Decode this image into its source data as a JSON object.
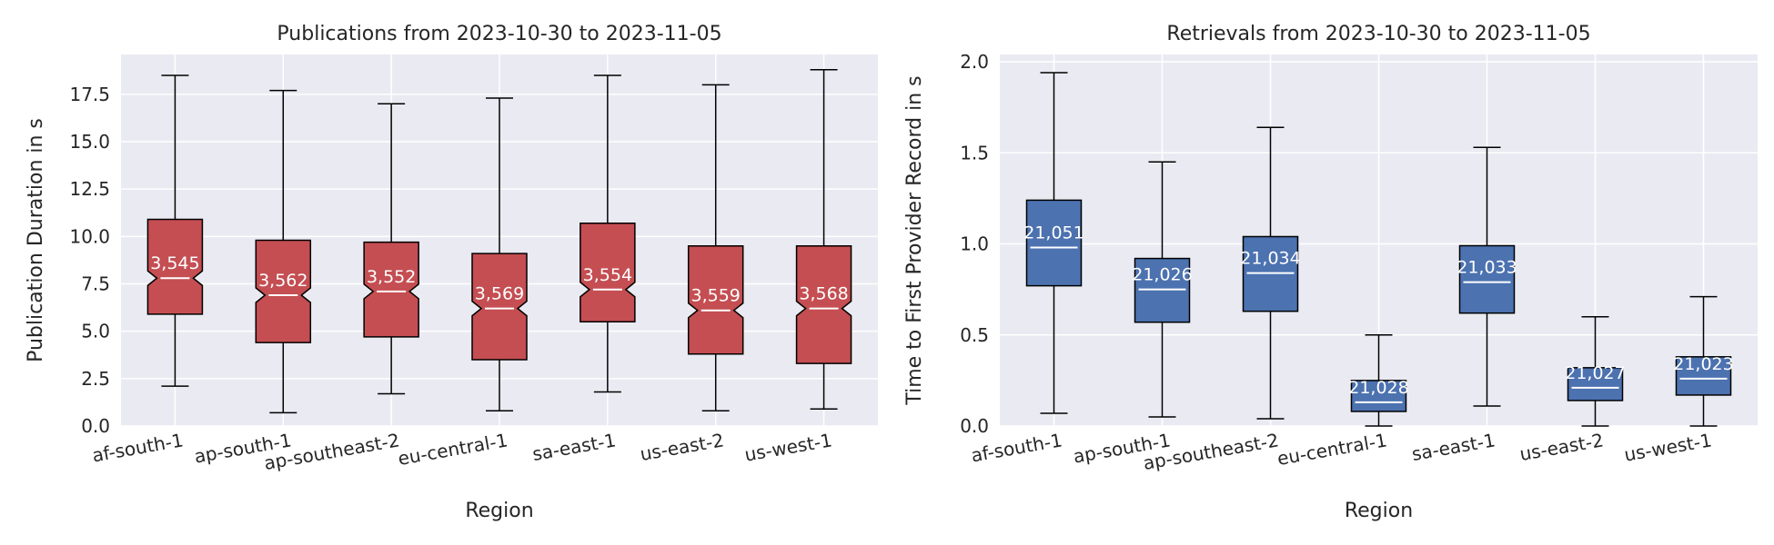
{
  "chart_data": [
    {
      "type": "boxplot",
      "title": "Publications from 2023-10-30 to 2023-11-05",
      "xlabel": "Region",
      "ylabel": "Publication Duration in s",
      "ylim": [
        0,
        19.6
      ],
      "yticks": [
        "0.0",
        "2.5",
        "5.0",
        "7.5",
        "10.0",
        "12.5",
        "15.0",
        "17.5"
      ],
      "ytick_values": [
        0,
        2.5,
        5,
        7.5,
        10,
        12.5,
        15,
        17.5
      ],
      "categories": [
        "af-south-1",
        "ap-south-1",
        "ap-southeast-2",
        "eu-central-1",
        "sa-east-1",
        "us-east-2",
        "us-west-1"
      ],
      "notched": true,
      "grid": true,
      "color": "#c44e52",
      "boxes": [
        {
          "whislo": 2.1,
          "q1": 5.9,
          "med": 7.8,
          "q3": 10.9,
          "whishi": 18.5,
          "count": "3,545"
        },
        {
          "whislo": 0.7,
          "q1": 4.4,
          "med": 6.9,
          "q3": 9.8,
          "whishi": 17.7,
          "count": "3,562"
        },
        {
          "whislo": 1.7,
          "q1": 4.7,
          "med": 7.1,
          "q3": 9.7,
          "whishi": 17.0,
          "count": "3,552"
        },
        {
          "whislo": 0.8,
          "q1": 3.5,
          "med": 6.2,
          "q3": 9.1,
          "whishi": 17.3,
          "count": "3,569"
        },
        {
          "whislo": 1.8,
          "q1": 5.5,
          "med": 7.2,
          "q3": 10.7,
          "whishi": 18.5,
          "count": "3,554"
        },
        {
          "whislo": 0.8,
          "q1": 3.8,
          "med": 6.1,
          "q3": 9.5,
          "whishi": 18.0,
          "count": "3,559"
        },
        {
          "whislo": 0.9,
          "q1": 3.3,
          "med": 6.2,
          "q3": 9.5,
          "whishi": 18.8,
          "count": "3,568"
        }
      ]
    },
    {
      "type": "boxplot",
      "title": "Retrievals from 2023-10-30 to 2023-11-05",
      "xlabel": "Region",
      "ylabel": "Time to First Provider Record in s",
      "ylim": [
        0,
        2.04
      ],
      "yticks": [
        "0.0",
        "0.5",
        "1.0",
        "1.5",
        "2.0"
      ],
      "ytick_values": [
        0,
        0.5,
        1.0,
        1.5,
        2.0
      ],
      "categories": [
        "af-south-1",
        "ap-south-1",
        "ap-southeast-2",
        "eu-central-1",
        "sa-east-1",
        "us-east-2",
        "us-west-1"
      ],
      "notched": false,
      "grid": true,
      "color": "#4c72b0",
      "boxes": [
        {
          "whislo": 0.07,
          "q1": 0.77,
          "med": 0.98,
          "q3": 1.24,
          "whishi": 1.94,
          "count": "21,051"
        },
        {
          "whislo": 0.05,
          "q1": 0.57,
          "med": 0.75,
          "q3": 0.92,
          "whishi": 1.45,
          "count": "21,026"
        },
        {
          "whislo": 0.04,
          "q1": 0.63,
          "med": 0.84,
          "q3": 1.04,
          "whishi": 1.64,
          "count": "21,034"
        },
        {
          "whislo": 0.0,
          "q1": 0.08,
          "med": 0.13,
          "q3": 0.25,
          "whishi": 0.5,
          "count": "21,028"
        },
        {
          "whislo": 0.11,
          "q1": 0.62,
          "med": 0.79,
          "q3": 0.99,
          "whishi": 1.53,
          "count": "21,033"
        },
        {
          "whislo": 0.0,
          "q1": 0.14,
          "med": 0.21,
          "q3": 0.32,
          "whishi": 0.6,
          "count": "21,027"
        },
        {
          "whislo": 0.0,
          "q1": 0.17,
          "med": 0.26,
          "q3": 0.38,
          "whishi": 0.71,
          "count": "21,023"
        }
      ]
    }
  ]
}
